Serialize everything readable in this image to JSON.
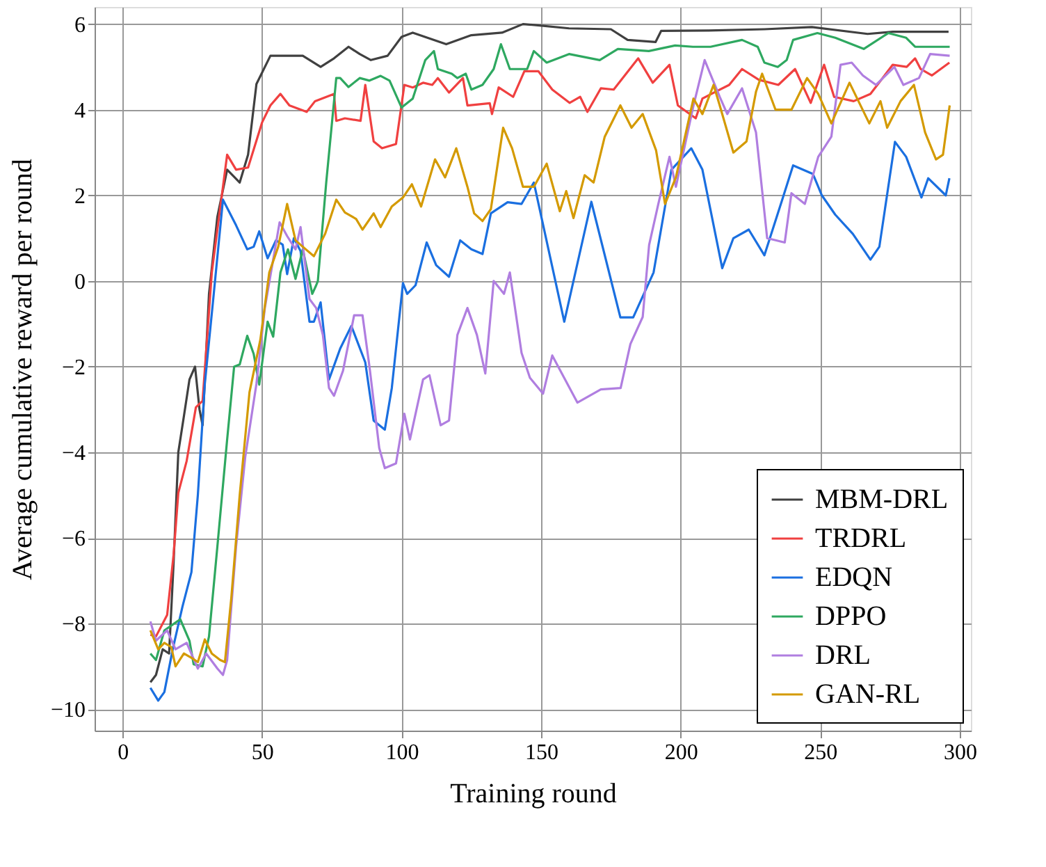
{
  "chart_data": {
    "type": "line",
    "xlabel": "Training round",
    "ylabel": "Average cumulative reward per round",
    "xlim": [
      -10,
      304
    ],
    "ylim": [
      -10.5,
      6.4
    ],
    "xticks": [
      0,
      50,
      100,
      150,
      200,
      250,
      300
    ],
    "yticks": [
      -10,
      -8,
      -6,
      -4,
      -2,
      0,
      2,
      4,
      6
    ],
    "grid": true,
    "legend": "bottom right",
    "line_style": "solid",
    "marker": "none",
    "series": [
      {
        "name": "MBM-DRL",
        "color": "#404040",
        "x": [
          10,
          12,
          14.4,
          16.7,
          18.3,
          20,
          22,
          24,
          26,
          27.6,
          28.7,
          31,
          34,
          37.5,
          42,
          45,
          48,
          53,
          58,
          64.6,
          71,
          75.8,
          81,
          85,
          89,
          95,
          100,
          104,
          116,
          125,
          136,
          143.5,
          147.5,
          160,
          175,
          181,
          191,
          193,
          210,
          230,
          247,
          267,
          276,
          296
        ],
        "values": [
          -9.37,
          -9.2,
          -8.6,
          -8.7,
          -6.6,
          -4,
          -3.16,
          -2.3,
          -2,
          -3.0,
          -3.37,
          -0.3,
          1.5,
          2.6,
          2.3,
          2.95,
          4.6,
          5.26,
          5.26,
          5.26,
          5.0,
          5.2,
          5.47,
          5.3,
          5.16,
          5.26,
          5.7,
          5.8,
          5.53,
          5.74,
          5.8,
          6.0,
          5.98,
          5.9,
          5.88,
          5.63,
          5.58,
          5.84,
          5.85,
          5.88,
          5.93,
          5.77,
          5.82,
          5.82
        ]
      },
      {
        "name": "TRDRL",
        "color": "#f04040",
        "x": [
          10,
          12,
          16,
          18.3,
          20,
          23,
          26.3,
          28.7,
          32,
          37.5,
          40.7,
          45,
          50,
          53,
          56.6,
          59.8,
          66,
          69,
          75.8,
          76.6,
          79.7,
          85.3,
          87,
          90,
          93,
          98,
          101,
          104,
          107.7,
          111,
          113,
          117,
          122,
          123.6,
          131.6,
          132.4,
          134.8,
          140,
          144,
          149,
          154,
          160.2,
          164,
          166.6,
          171.4,
          176,
          184.8,
          190,
          196,
          199,
          205.4,
          207.8,
          212.5,
          217.4,
          222,
          228,
          235,
          241,
          246.6,
          251.4,
          255,
          262,
          268,
          276,
          281,
          284,
          286,
          290,
          296.3
        ],
        "values": [
          -8.26,
          -8.3,
          -7.8,
          -6.4,
          -4.95,
          -4.2,
          -2.95,
          -2.8,
          0.2,
          2.95,
          2.6,
          2.65,
          3.7,
          4.1,
          4.37,
          4.1,
          3.95,
          4.2,
          4.37,
          3.74,
          3.8,
          3.74,
          4.58,
          3.26,
          3.1,
          3.2,
          4.58,
          4.52,
          4.63,
          4.58,
          4.74,
          4.4,
          4.74,
          4.1,
          4.15,
          3.9,
          4.52,
          4.3,
          4.9,
          4.9,
          4.47,
          4.16,
          4.3,
          3.95,
          4.5,
          4.47,
          5.2,
          4.63,
          5.05,
          4.1,
          3.8,
          4.26,
          4.42,
          4.58,
          4.95,
          4.7,
          4.58,
          4.95,
          4.16,
          5.05,
          4.3,
          4.2,
          4.37,
          5.05,
          5.0,
          5.2,
          4.95,
          4.8,
          5.1
        ]
      },
      {
        "name": "EDQN",
        "color": "#1a6fe0",
        "x": [
          10,
          12.8,
          15,
          18,
          21.5,
          24.7,
          27,
          29.5,
          32.7,
          36,
          40.7,
          44.7,
          47,
          49,
          52,
          55,
          57.4,
          59,
          61.4,
          63.8,
          67,
          68.6,
          71,
          74,
          78,
          82,
          87,
          90,
          94,
          96.5,
          100.5,
          102,
          105,
          109,
          112.4,
          117,
          121,
          125,
          129,
          132,
          138,
          143,
          147.4,
          158.3,
          168,
          178.4,
          183,
          190.3,
          196.7,
          203.8,
          207.8,
          214.9,
          218.9,
          224.4,
          230,
          236.4,
          240.3,
          247.4,
          250.6,
          255.4,
          261.7,
          268,
          271.2,
          276.8,
          280.8,
          286.3,
          288.7,
          295,
          296.3
        ],
        "values": [
          -9.5,
          -9.8,
          -9.6,
          -8.6,
          -7.6,
          -6.8,
          -5,
          -2.4,
          -0.3,
          1.9,
          1.3,
          0.74,
          0.8,
          1.16,
          0.53,
          0.95,
          0.85,
          0.16,
          1.0,
          0.7,
          -0.95,
          -0.95,
          -0.5,
          -2.3,
          -1.58,
          -1.05,
          -1.9,
          -3.26,
          -3.47,
          -2.5,
          -0.05,
          -0.3,
          -0.1,
          0.9,
          0.37,
          0.1,
          0.95,
          0.74,
          0.63,
          1.58,
          1.84,
          1.8,
          2.3,
          -0.95,
          1.85,
          -0.85,
          -0.85,
          0.2,
          2.6,
          3.1,
          2.6,
          0.3,
          1.0,
          1.2,
          0.6,
          1.9,
          2.7,
          2.5,
          2.0,
          1.55,
          1.1,
          0.5,
          0.8,
          3.25,
          2.9,
          1.95,
          2.4,
          2.0,
          2.4
        ]
      },
      {
        "name": "DPPO",
        "color": "#2ea860",
        "x": [
          10,
          12,
          15,
          20.7,
          24,
          25.5,
          28.7,
          31,
          34,
          37.5,
          40,
          42,
          44.7,
          47,
          49,
          52,
          54,
          56.6,
          59.3,
          62,
          64.6,
          68,
          69.4,
          70,
          73,
          76.6,
          78,
          81,
          85,
          88.5,
          92.5,
          95.7,
          100,
          104,
          108.5,
          111.6,
          113,
          118,
          120,
          123,
          125,
          129,
          133,
          135.6,
          138.8,
          145,
          147.4,
          152,
          160,
          171,
          177.5,
          188.6,
          198,
          204.4,
          210.7,
          222,
          227.6,
          230,
          234.8,
          238,
          240.3,
          249,
          255.4,
          265.6,
          274.4,
          280.8,
          284,
          296.4
        ],
        "values": [
          -8.7,
          -8.85,
          -8.16,
          -7.9,
          -8.4,
          -8.95,
          -9.0,
          -8.3,
          -6.2,
          -3.7,
          -2,
          -1.95,
          -1.28,
          -1.7,
          -2.42,
          -0.95,
          -1.3,
          0.2,
          0.74,
          0.05,
          0.74,
          -0.3,
          -0.1,
          0.0,
          2.3,
          4.74,
          4.74,
          4.53,
          4.74,
          4.68,
          4.79,
          4.68,
          4.05,
          4.26,
          5.16,
          5.37,
          4.95,
          4.84,
          4.74,
          4.84,
          4.47,
          4.58,
          4.95,
          5.53,
          4.95,
          4.95,
          5.37,
          5.1,
          5.3,
          5.16,
          5.42,
          5.37,
          5.5,
          5.47,
          5.47,
          5.63,
          5.47,
          5.1,
          5.0,
          5.16,
          5.63,
          5.79,
          5.68,
          5.42,
          5.79,
          5.68,
          5.47,
          5.47
        ]
      },
      {
        "name": "DRL",
        "color": "#b07ee0",
        "x": [
          10,
          12,
          16,
          19,
          23,
          27,
          30,
          34,
          36,
          37.5,
          40.7,
          44,
          48,
          51,
          54,
          56.3,
          59,
          62,
          63.8,
          67,
          69.4,
          71.8,
          74,
          75.8,
          79,
          83,
          86,
          88.5,
          92,
          94,
          98,
          101,
          103,
          107.7,
          110,
          114,
          117,
          120,
          123.6,
          127,
          130,
          133,
          136.7,
          138.8,
          143,
          146,
          150.7,
          154,
          163,
          171.4,
          178.5,
          182,
          186.4,
          188.7,
          192,
          196,
          198.3,
          204.6,
          208.6,
          214,
          216.7,
          222,
          227,
          231,
          237.3,
          239.7,
          244.5,
          249.3,
          254,
          257.3,
          261.3,
          265.3,
          270,
          276.6,
          279.8,
          285.4,
          289.4,
          296.4
        ],
        "values": [
          -7.95,
          -8.4,
          -8.16,
          -8.6,
          -8.45,
          -9.05,
          -8.7,
          -9.05,
          -9.2,
          -8.85,
          -6.2,
          -4.1,
          -2.4,
          -0.63,
          0.5,
          1.37,
          1.05,
          0.74,
          1.26,
          -0.42,
          -0.63,
          -1.26,
          -2.5,
          -2.68,
          -2.1,
          -0.8,
          -0.8,
          -2,
          -3.9,
          -4.37,
          -4.26,
          -3.1,
          -3.7,
          -2.3,
          -2.2,
          -3.37,
          -3.26,
          -1.26,
          -0.63,
          -1.26,
          -2.16,
          0.0,
          -0.3,
          0.2,
          -1.68,
          -2.26,
          -2.63,
          -1.74,
          -2.84,
          -2.53,
          -2.5,
          -1.47,
          -0.84,
          0.84,
          1.8,
          2.9,
          2.2,
          4.1,
          5.16,
          4.3,
          3.9,
          4.5,
          3.47,
          1.0,
          0.9,
          2.05,
          1.8,
          2.9,
          3.37,
          5.05,
          5.1,
          4.8,
          4.58,
          5.0,
          4.58,
          4.74,
          5.3,
          5.26
        ]
      },
      {
        "name": "GAN-RL",
        "color": "#d49a00",
        "x": [
          10,
          12.8,
          15,
          17.5,
          19,
          22,
          24.7,
          27,
          29.5,
          32,
          35,
          36.7,
          39,
          42,
          45.5,
          49.4,
          52.6,
          55.8,
          59,
          62,
          64.6,
          68.6,
          72.6,
          76.6,
          79.7,
          83.7,
          86,
          90,
          92.5,
          96.5,
          100.5,
          103.7,
          107,
          112,
          115.6,
          119.6,
          123.6,
          126,
          129,
          132,
          136.4,
          139.6,
          143.5,
          147.4,
          152,
          156.7,
          159,
          161.6,
          165.6,
          168.8,
          172.8,
          178.4,
          182.4,
          186.4,
          191.2,
          194.4,
          198.3,
          204.6,
          207.8,
          211.8,
          214,
          218.9,
          223.6,
          227,
          229.2,
          234,
          239.7,
          245.3,
          249.3,
          254,
          260.5,
          267.6,
          271.6,
          274,
          278.8,
          283.6,
          287.6,
          291.5,
          294,
          296.4
        ],
        "values": [
          -8.16,
          -8.6,
          -8.45,
          -8.55,
          -9.0,
          -8.7,
          -8.8,
          -8.9,
          -8.37,
          -8.7,
          -8.85,
          -8.9,
          -7.4,
          -5,
          -2.6,
          -1.37,
          0.2,
          0.8,
          1.8,
          0.95,
          0.8,
          0.58,
          1.1,
          1.9,
          1.6,
          1.45,
          1.2,
          1.58,
          1.26,
          1.74,
          1.95,
          2.26,
          1.74,
          2.84,
          2.42,
          3.1,
          2.2,
          1.58,
          1.4,
          1.68,
          3.58,
          3.1,
          2.2,
          2.2,
          2.74,
          1.63,
          2.1,
          1.47,
          2.47,
          2.3,
          3.37,
          4.1,
          3.58,
          3.9,
          3.05,
          1.8,
          2.42,
          4.26,
          3.9,
          4.58,
          4.1,
          3.0,
          3.26,
          4.42,
          4.84,
          4.0,
          4.0,
          4.74,
          4.37,
          3.68,
          4.63,
          3.68,
          4.2,
          3.58,
          4.2,
          4.58,
          3.47,
          2.84,
          2.95,
          4.1
        ]
      }
    ]
  }
}
